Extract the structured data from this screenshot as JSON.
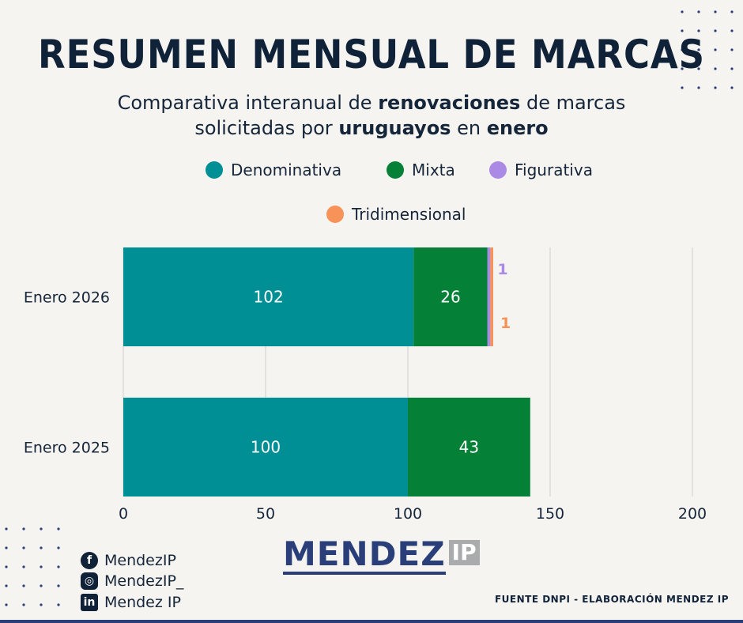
{
  "title": "RESUMEN MENSUAL DE MARCAS",
  "subtitle": {
    "line1_a": "Comparativa interanual de ",
    "line1_b": "renovaciones",
    "line1_c": " de marcas",
    "line2_a": "solicitadas por ",
    "line2_b": "uruguayos",
    "line2_c": " en ",
    "line2_d": "enero"
  },
  "legend": [
    {
      "label": "Denominativa",
      "color": "#008f95"
    },
    {
      "label": "Mixta",
      "color": "#058037"
    },
    {
      "label": "Figurativa",
      "color": "#ab8ae6"
    },
    {
      "label": "Tridimensional",
      "color": "#f79358"
    }
  ],
  "chart_data": {
    "type": "bar",
    "orientation": "horizontal",
    "stacked": true,
    "categories": [
      "Enero 2026",
      "Enero 2025"
    ],
    "series": [
      {
        "name": "Denominativa",
        "values": [
          102,
          100
        ],
        "color": "#008f95"
      },
      {
        "name": "Mixta",
        "values": [
          26,
          43
        ],
        "color": "#058037"
      },
      {
        "name": "Figurativa",
        "values": [
          1,
          0
        ],
        "color": "#ab8ae6"
      },
      {
        "name": "Tridimensional",
        "values": [
          1,
          0
        ],
        "color": "#f79358"
      }
    ],
    "xlim": [
      0,
      200
    ],
    "xticks": [
      "0",
      "50",
      "100",
      "150",
      "200"
    ],
    "grid": true
  },
  "social": [
    {
      "icon": "facebook-icon",
      "glyph": "f",
      "label": "MendezIP"
    },
    {
      "icon": "instagram-icon",
      "glyph": "◎",
      "label": "MendezIP_"
    },
    {
      "icon": "linkedin-icon",
      "glyph": "in",
      "label": "Mendez IP"
    }
  ],
  "logo": {
    "name": "MENDEZ",
    "suffix": "IP"
  },
  "source": "FUENTE DNPI - ELABORACIÓN MENDEZ IP"
}
